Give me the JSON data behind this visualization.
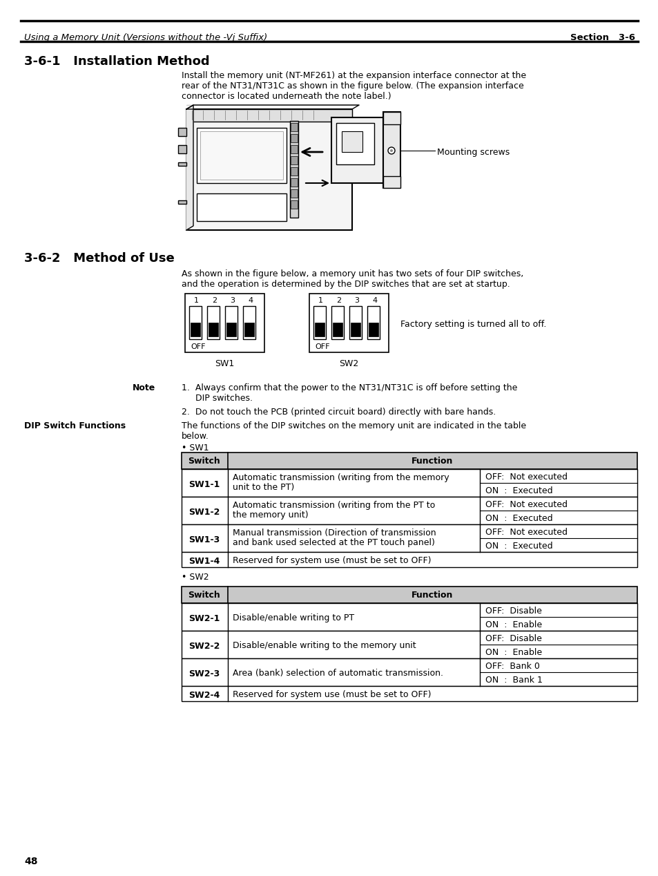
{
  "header_italic": "Using a Memory Unit (Versions without the -Vj Suffix)",
  "header_right": "Section   3-6",
  "page_number": "48",
  "section1_title": "3-6-1   Installation Method",
  "section1_body_l1": "Install the memory unit (NT-MF261) at the expansion interface connector at the",
  "section1_body_l2": "rear of the NT31/NT31C as shown in the figure below. (The expansion interface",
  "section1_body_l3": "connector is located underneath the note label.)",
  "mounting_label": "Mounting screws",
  "section2_title": "3-6-2   Method of Use",
  "section2_body_l1": "As shown in the figure below, a memory unit has two sets of four DIP switches,",
  "section2_body_l2": "and the operation is determined by the DIP switches that are set at startup.",
  "dip_label_off": "OFF",
  "dip_sw1_label": "SW1",
  "dip_sw2_label": "SW2",
  "factory_setting": "Factory setting is turned all to off.",
  "note_label": "Note",
  "note1a": "1.  Always confirm that the power to the NT31/NT31C is off before setting the",
  "note1b": "     DIP switches.",
  "note2": "2.  Do not touch the PCB (printed circuit board) directly with bare hands.",
  "dip_functions_label": "DIP Switch Functions",
  "dip_functions_b1": "The functions of the DIP switches on the memory unit are indicated in the table",
  "dip_functions_b2": "below.",
  "sw1_bullet": "• SW1",
  "sw2_bullet": "• SW2",
  "bg_color": "#ffffff"
}
